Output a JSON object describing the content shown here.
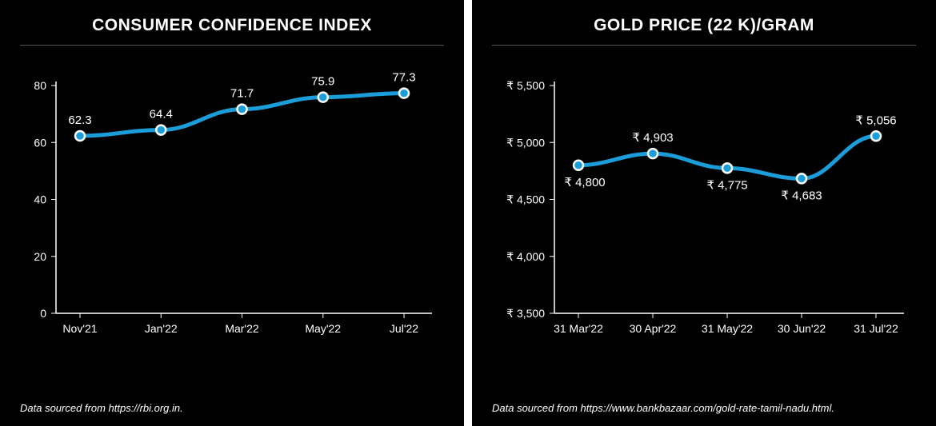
{
  "left_chart": {
    "type": "line",
    "title": "CONSUMER CONFIDENCE INDEX",
    "source": "Data sourced from https://rbi.org.in.",
    "categories": [
      "Nov'21",
      "Jan'22",
      "Mar'22",
      "May'22",
      "Jul'22"
    ],
    "values": [
      62.3,
      64.4,
      71.7,
      75.9,
      77.3
    ],
    "value_labels": [
      "62.3",
      "64.4",
      "71.7",
      "75.9",
      "77.3"
    ],
    "ylim": [
      0,
      80
    ],
    "ytick_step": 20,
    "yticks": [
      0,
      20,
      40,
      60,
      80
    ],
    "line_color": "#1a9dd9",
    "marker_fill": "#1a9dd9",
    "marker_stroke": "#ffffff",
    "background_color": "#000000",
    "text_color": "#ffffff",
    "axis_color": "#ffffff",
    "divider_color": "#555555",
    "title_fontsize": 21,
    "label_fontsize": 15,
    "axis_fontsize": 14,
    "line_width": 5,
    "marker_radius": 6,
    "data_label_positions": [
      "above",
      "above",
      "above",
      "above",
      "above"
    ]
  },
  "right_chart": {
    "type": "line",
    "title": "GOLD PRICE (22 K)/GRAM",
    "source": "Data sourced from https://www.bankbazaar.com/gold-rate-tamil-nadu.html.",
    "categories": [
      "31 Mar'22",
      "30 Apr'22",
      "31 May'22",
      "30 Jun'22",
      "31 Jul'22"
    ],
    "values": [
      4800,
      4903,
      4775,
      4683,
      5056
    ],
    "value_labels": [
      "₹ 4,800",
      "₹ 4,903",
      "₹ 4,775",
      "₹ 4,683",
      "₹ 5,056"
    ],
    "ylim": [
      3500,
      5500
    ],
    "ytick_step": 500,
    "yticks": [
      3500,
      4000,
      4500,
      5000,
      5500
    ],
    "ytick_labels": [
      "₹ 3,500",
      "₹ 4,000",
      "₹ 4,500",
      "₹ 5,000",
      "₹ 5,500"
    ],
    "line_color": "#1a9dd9",
    "marker_fill": "#1a9dd9",
    "marker_stroke": "#ffffff",
    "background_color": "#000000",
    "text_color": "#ffffff",
    "axis_color": "#ffffff",
    "divider_color": "#555555",
    "title_fontsize": 21,
    "label_fontsize": 15,
    "axis_fontsize": 14,
    "line_width": 5,
    "marker_radius": 6,
    "data_label_positions": [
      "below",
      "above",
      "below",
      "below",
      "above"
    ]
  }
}
